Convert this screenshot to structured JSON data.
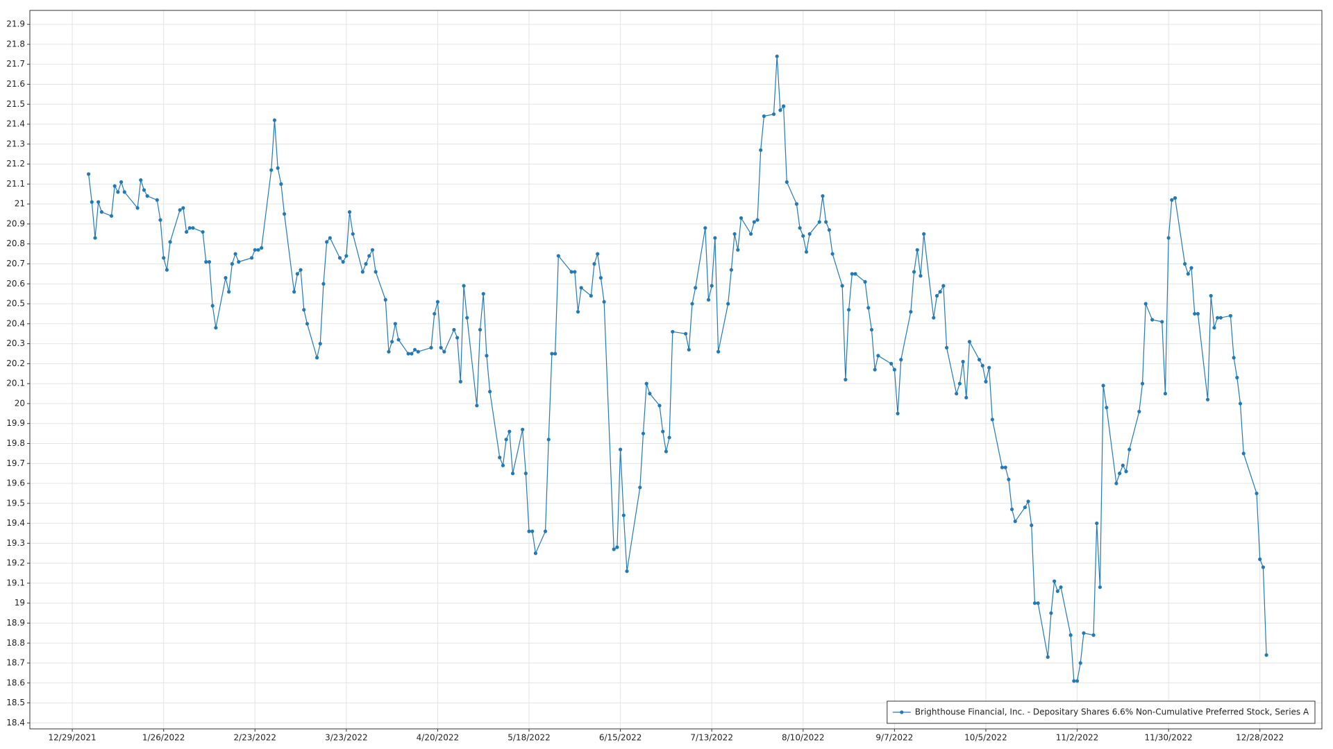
{
  "chart_data": {
    "type": "line",
    "xlim": [
      "12/16/2021",
      "1/16/2023"
    ],
    "ylim": [
      18.37,
      21.97
    ],
    "xticks": [
      "12/29/2021",
      "1/26/2022",
      "2/23/2022",
      "3/23/2022",
      "4/20/2022",
      "5/18/2022",
      "6/15/2022",
      "7/13/2022",
      "8/10/2022",
      "9/7/2022",
      "10/5/2022",
      "11/2/2022",
      "11/30/2022",
      "12/28/2022"
    ],
    "yticks": [
      18.4,
      18.5,
      18.6,
      18.7,
      18.8,
      18.9,
      19,
      19.1,
      19.2,
      19.3,
      19.4,
      19.5,
      19.6,
      19.7,
      19.8,
      19.9,
      20,
      20.1,
      20.2,
      20.3,
      20.4,
      20.5,
      20.6,
      20.7,
      20.8,
      20.9,
      21,
      21.1,
      21.2,
      21.3,
      21.4,
      21.5,
      21.6,
      21.7,
      21.8,
      21.9
    ],
    "grid": true,
    "legend": "lower right",
    "x": [
      "1/3/2022",
      "1/4/2022",
      "1/5/2022",
      "1/6/2022",
      "1/7/2022",
      "1/10/2022",
      "1/11/2022",
      "1/12/2022",
      "1/13/2022",
      "1/14/2022",
      "1/18/2022",
      "1/19/2022",
      "1/20/2022",
      "1/21/2022",
      "1/24/2022",
      "1/25/2022",
      "1/26/2022",
      "1/27/2022",
      "1/28/2022",
      "1/31/2022",
      "2/1/2022",
      "2/2/2022",
      "2/3/2022",
      "2/4/2022",
      "2/7/2022",
      "2/8/2022",
      "2/9/2022",
      "2/10/2022",
      "2/11/2022",
      "2/14/2022",
      "2/15/2022",
      "2/16/2022",
      "2/17/2022",
      "2/18/2022",
      "2/22/2022",
      "2/23/2022",
      "2/24/2022",
      "2/25/2022",
      "2/28/2022",
      "3/1/2022",
      "3/2/2022",
      "3/3/2022",
      "3/4/2022",
      "3/7/2022",
      "3/8/2022",
      "3/9/2022",
      "3/10/2022",
      "3/11/2022",
      "3/14/2022",
      "3/15/2022",
      "3/16/2022",
      "3/17/2022",
      "3/18/2022",
      "3/21/2022",
      "3/22/2022",
      "3/23/2022",
      "3/24/2022",
      "3/25/2022",
      "3/28/2022",
      "3/29/2022",
      "3/30/2022",
      "3/31/2022",
      "4/1/2022",
      "4/4/2022",
      "4/5/2022",
      "4/6/2022",
      "4/7/2022",
      "4/8/2022",
      "4/11/2022",
      "4/12/2022",
      "4/13/2022",
      "4/14/2022",
      "4/18/2022",
      "4/19/2022",
      "4/20/2022",
      "4/21/2022",
      "4/22/2022",
      "4/25/2022",
      "4/26/2022",
      "4/27/2022",
      "4/28/2022",
      "4/29/2022",
      "5/2/2022",
      "5/3/2022",
      "5/4/2022",
      "5/5/2022",
      "5/6/2022",
      "5/9/2022",
      "5/10/2022",
      "5/11/2022",
      "5/12/2022",
      "5/13/2022",
      "5/16/2022",
      "5/17/2022",
      "5/18/2022",
      "5/19/2022",
      "5/20/2022",
      "5/23/2022",
      "5/24/2022",
      "5/25/2022",
      "5/26/2022",
      "5/27/2022",
      "5/31/2022",
      "6/1/2022",
      "6/2/2022",
      "6/3/2022",
      "6/6/2022",
      "6/7/2022",
      "6/8/2022",
      "6/9/2022",
      "6/10/2022",
      "6/13/2022",
      "6/14/2022",
      "6/15/2022",
      "6/16/2022",
      "6/17/2022",
      "6/21/2022",
      "6/22/2022",
      "6/23/2022",
      "6/24/2022",
      "6/27/2022",
      "6/28/2022",
      "6/29/2022",
      "6/30/2022",
      "7/1/2022",
      "7/5/2022",
      "7/6/2022",
      "7/7/2022",
      "7/8/2022",
      "7/11/2022",
      "7/12/2022",
      "7/13/2022",
      "7/14/2022",
      "7/15/2022",
      "7/18/2022",
      "7/19/2022",
      "7/20/2022",
      "7/21/2022",
      "7/22/2022",
      "7/25/2022",
      "7/26/2022",
      "7/27/2022",
      "7/28/2022",
      "7/29/2022",
      "8/1/2022",
      "8/2/2022",
      "8/3/2022",
      "8/4/2022",
      "8/5/2022",
      "8/8/2022",
      "8/9/2022",
      "8/10/2022",
      "8/11/2022",
      "8/12/2022",
      "8/15/2022",
      "8/16/2022",
      "8/17/2022",
      "8/18/2022",
      "8/19/2022",
      "8/22/2022",
      "8/23/2022",
      "8/24/2022",
      "8/25/2022",
      "8/26/2022",
      "8/29/2022",
      "8/30/2022",
      "8/31/2022",
      "9/1/2022",
      "9/2/2022",
      "9/6/2022",
      "9/7/2022",
      "9/8/2022",
      "9/9/2022",
      "9/12/2022",
      "9/13/2022",
      "9/14/2022",
      "9/15/2022",
      "9/16/2022",
      "9/19/2022",
      "9/20/2022",
      "9/21/2022",
      "9/22/2022",
      "9/23/2022",
      "9/26/2022",
      "9/27/2022",
      "9/28/2022",
      "9/29/2022",
      "9/30/2022",
      "10/3/2022",
      "10/4/2022",
      "10/5/2022",
      "10/6/2022",
      "10/7/2022",
      "10/10/2022",
      "10/11/2022",
      "10/12/2022",
      "10/13/2022",
      "10/14/2022",
      "10/17/2022",
      "10/18/2022",
      "10/19/2022",
      "10/20/2022",
      "10/21/2022",
      "10/24/2022",
      "10/25/2022",
      "10/26/2022",
      "10/27/2022",
      "10/28/2022",
      "10/31/2022",
      "11/1/2022",
      "11/2/2022",
      "11/3/2022",
      "11/4/2022",
      "11/7/2022",
      "11/8/2022",
      "11/9/2022",
      "11/10/2022",
      "11/11/2022",
      "11/14/2022",
      "11/15/2022",
      "11/16/2022",
      "11/17/2022",
      "11/18/2022",
      "11/21/2022",
      "11/22/2022",
      "11/23/2022",
      "11/25/2022",
      "11/28/2022",
      "11/29/2022",
      "11/30/2022",
      "12/1/2022",
      "12/2/2022",
      "12/5/2022",
      "12/6/2022",
      "12/7/2022",
      "12/8/2022",
      "12/9/2022",
      "12/12/2022",
      "12/13/2022",
      "12/14/2022",
      "12/15/2022",
      "12/16/2022",
      "12/19/2022",
      "12/20/2022",
      "12/21/2022",
      "12/22/2022",
      "12/23/2022",
      "12/27/2022",
      "12/28/2022",
      "12/29/2022",
      "12/30/2022"
    ],
    "series": [
      {
        "name": "Brighthouse Financial, Inc. - Depositary Shares 6.6% Non-Cumulative Preferred Stock, Series A",
        "color": "#2379b5",
        "values": [
          21.15,
          21.01,
          20.83,
          21.01,
          20.96,
          20.94,
          21.09,
          21.06,
          21.11,
          21.06,
          20.98,
          21.12,
          21.07,
          21.04,
          21.02,
          20.92,
          20.73,
          20.67,
          20.81,
          20.97,
          20.98,
          20.86,
          20.88,
          20.88,
          20.86,
          20.71,
          20.71,
          20.49,
          20.38,
          20.63,
          20.56,
          20.7,
          20.75,
          20.71,
          20.73,
          20.77,
          20.77,
          20.78,
          21.17,
          21.42,
          21.18,
          21.1,
          20.95,
          20.56,
          20.65,
          20.67,
          20.47,
          20.4,
          20.23,
          20.3,
          20.6,
          20.81,
          20.83,
          20.73,
          20.71,
          20.74,
          20.96,
          20.85,
          20.66,
          20.7,
          20.74,
          20.77,
          20.66,
          20.52,
          20.26,
          20.31,
          20.4,
          20.32,
          20.25,
          20.25,
          20.27,
          20.26,
          20.28,
          20.45,
          20.51,
          20.28,
          20.26,
          20.37,
          20.33,
          20.11,
          20.59,
          20.43,
          19.99,
          20.37,
          20.55,
          20.24,
          20.06,
          19.73,
          19.69,
          19.82,
          19.86,
          19.65,
          19.87,
          19.65,
          19.36,
          19.36,
          19.25,
          19.36,
          19.82,
          20.25,
          20.25,
          20.74,
          20.66,
          20.66,
          20.46,
          20.58,
          20.54,
          20.7,
          20.75,
          20.63,
          20.51,
          19.27,
          19.28,
          19.77,
          19.44,
          19.16,
          19.58,
          19.85,
          20.1,
          20.05,
          19.99,
          19.86,
          19.76,
          19.83,
          20.36,
          20.35,
          20.27,
          20.5,
          20.58,
          20.88,
          20.52,
          20.59,
          20.83,
          20.26,
          20.5,
          20.67,
          20.85,
          20.77,
          20.93,
          20.85,
          20.91,
          20.92,
          21.27,
          21.44,
          21.45,
          21.74,
          21.47,
          21.49,
          21.11,
          21.0,
          20.88,
          20.84,
          20.76,
          20.85,
          20.91,
          21.04,
          20.91,
          20.87,
          20.75,
          20.59,
          20.12,
          20.47,
          20.65,
          20.65,
          20.61,
          20.48,
          20.37,
          20.17,
          20.24,
          20.2,
          20.17,
          19.95,
          20.22,
          20.46,
          20.66,
          20.77,
          20.64,
          20.85,
          20.43,
          20.54,
          20.56,
          20.59,
          20.28,
          20.05,
          20.1,
          20.21,
          20.03,
          20.31,
          20.22,
          20.19,
          20.11,
          20.18,
          19.92,
          19.68,
          19.68,
          19.62,
          19.47,
          19.41,
          19.48,
          19.51,
          19.39,
          19.0,
          19.0,
          18.73,
          18.95,
          19.11,
          19.06,
          19.08,
          18.84,
          18.61,
          18.61,
          18.7,
          18.85,
          18.84,
          19.4,
          19.08,
          20.09,
          19.98,
          19.6,
          19.65,
          19.69,
          19.66,
          19.77,
          19.96,
          20.1,
          20.5,
          20.42,
          20.41,
          20.05,
          20.83,
          21.02,
          21.03,
          20.7,
          20.65,
          20.68,
          20.45,
          20.45,
          20.02,
          20.54,
          20.38,
          20.43,
          20.43,
          20.44,
          20.23,
          20.13,
          20.0,
          19.75,
          19.55,
          19.22,
          19.18,
          18.74
        ]
      }
    ]
  }
}
